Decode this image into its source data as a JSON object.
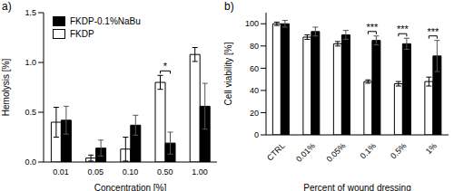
{
  "chart_data": [
    {
      "type": "bar",
      "title": "a)",
      "x_label": "Concentration [%]",
      "y_label": "Hemolysis [%]",
      "categories": [
        "0.01",
        "0.05",
        "0.10",
        "0.50",
        "1.00"
      ],
      "series": [
        {
          "name": "FKDP",
          "color": "#ffffff",
          "values": [
            0.4,
            0.04,
            0.13,
            0.8,
            1.08
          ],
          "errors": [
            0.15,
            0.03,
            0.12,
            0.07,
            0.07
          ]
        },
        {
          "name": "FKDP-0.1%NaBu",
          "color": "#000000",
          "values": [
            0.42,
            0.14,
            0.37,
            0.19,
            0.56
          ],
          "errors": [
            0.14,
            0.08,
            0.1,
            0.11,
            0.23
          ]
        }
      ],
      "ylim": [
        0,
        1.5
      ],
      "yticks": [
        {
          "value": 0,
          "label": "0.0"
        },
        {
          "value": 0.5,
          "label": "0.5"
        },
        {
          "value": 1,
          "label": "1.0"
        },
        {
          "value": 1.5,
          "label": "1.5"
        }
      ],
      "legend": "upper left",
      "annotations": [
        {
          "text": "*",
          "category": "0.50"
        }
      ]
    },
    {
      "type": "bar",
      "title": "b)",
      "x_label": "Percent of wound dressing",
      "y_label": "Cell viability [%]",
      "categories": [
        "CTRL",
        "0.01%",
        "0.05%",
        "0.1%",
        "0.5%",
        "1%"
      ],
      "series": [
        {
          "name": "FKDP",
          "color": "#ffffff",
          "values": [
            100,
            88,
            82,
            48,
            46,
            48
          ],
          "errors": [
            1.5,
            2,
            2,
            1.5,
            2,
            4
          ]
        },
        {
          "name": "FKDP-0.1%NaBu",
          "color": "#000000",
          "values": [
            100,
            93,
            90,
            85,
            82,
            71
          ],
          "errors": [
            3,
            4,
            4,
            4,
            5,
            14
          ]
        }
      ],
      "ylim": [
        0,
        110
      ],
      "yticks": [
        0,
        20,
        40,
        60,
        80,
        100
      ],
      "annotations": [
        {
          "text": "***",
          "category": "0.1%"
        },
        {
          "text": "***",
          "category": "0.5%"
        },
        {
          "text": "***",
          "category": "1%"
        }
      ]
    }
  ]
}
